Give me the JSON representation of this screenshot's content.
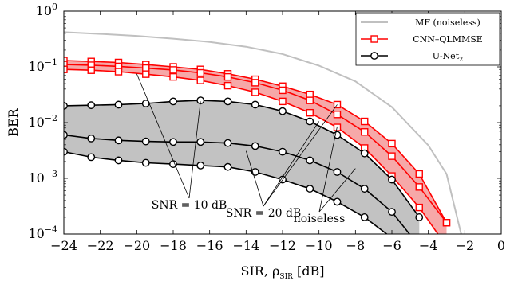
{
  "chart_data": {
    "type": "line",
    "xlabel": "SIR, ρ",
    "xlabel_sub": "SIR",
    "xlabel_unit": " [dB]",
    "ylabel": "BER",
    "xlim": [
      -24,
      0
    ],
    "ylim": [
      0.0001,
      1
    ],
    "yscale": "log",
    "x_ticks": [
      -24,
      -22,
      -20,
      -18,
      -16,
      -14,
      -12,
      -10,
      -8,
      -6,
      -4,
      -2,
      0
    ],
    "x_tick_labels": [
      "−24",
      "−22",
      "−20",
      "−18",
      "−16",
      "−14",
      "−12",
      "−10",
      "−8",
      "−6",
      "−4",
      "−2",
      "0"
    ],
    "y_ticks": [
      {
        "value": 1,
        "base": "10",
        "exp": "0"
      },
      {
        "value": 0.1,
        "base": "10",
        "exp": "−1"
      },
      {
        "value": 0.01,
        "base": "10",
        "exp": "−2"
      },
      {
        "value": 0.001,
        "base": "10",
        "exp": "−3"
      },
      {
        "value": 0.0001,
        "base": "10",
        "exp": "−4"
      }
    ],
    "legend": {
      "placement": "top-right",
      "entries": [
        {
          "name": "MF (noiseless)",
          "color": "#c0c0c0",
          "marker": "none"
        },
        {
          "name": "CNN–QLMMSE",
          "color": "#ff0000",
          "marker": "square"
        },
        {
          "name": "U-Net",
          "sub": "2",
          "color": "#000000",
          "marker": "circle"
        }
      ]
    },
    "series": [
      {
        "name": "MF (noiseless)",
        "color": "#c0c0c0",
        "marker": "none",
        "x": [
          -24,
          -22,
          -20,
          -18,
          -16,
          -14,
          -12,
          -10,
          -8,
          -6,
          -4,
          -3,
          -2.2
        ],
        "y": [
          0.42,
          0.39,
          0.36,
          0.32,
          0.28,
          0.23,
          0.17,
          0.105,
          0.055,
          0.019,
          0.0039,
          0.0012,
          0.0001
        ]
      },
      {
        "name": "CNN–QLMMSE",
        "group": "SNR = 20 dB",
        "color": "#ff0000",
        "marker": "square",
        "x": [
          -24,
          -22.5,
          -21,
          -19.5,
          -18,
          -16.5,
          -15,
          -13.5,
          -12,
          -10.5,
          -9,
          -7.5,
          -6,
          -4.5,
          -3
        ],
        "y": [
          0.13,
          0.125,
          0.12,
          0.11,
          0.1,
          0.09,
          0.075,
          0.06,
          0.045,
          0.032,
          0.021,
          0.0105,
          0.0042,
          0.0012,
          0.00016
        ]
      },
      {
        "name": "CNN–QLMMSE",
        "group": "SNR = 10 dB",
        "color": "#ff0000",
        "marker": "square",
        "x": [
          -24,
          -22.5,
          -21,
          -19.5,
          -18,
          -16.5,
          -15,
          -13.5,
          -12,
          -10.5,
          -9,
          -7.5,
          -6,
          -4.5,
          -3
        ],
        "y": [
          0.11,
          0.107,
          0.102,
          0.095,
          0.088,
          0.078,
          0.066,
          0.052,
          0.038,
          0.025,
          0.014,
          0.0068,
          0.0025,
          0.0007,
          0.00016
        ]
      },
      {
        "name": "CNN–QLMMSE",
        "group": "noiseless",
        "color": "#ff0000",
        "marker": "square",
        "x": [
          -24,
          -22.5,
          -21,
          -19.5,
          -18,
          -16.5,
          -15,
          -13.5,
          -12,
          -10.5,
          -9,
          -7.5,
          -6,
          -4.5,
          -3
        ],
        "y": [
          0.09,
          0.087,
          0.082,
          0.074,
          0.066,
          0.057,
          0.046,
          0.035,
          0.024,
          0.015,
          0.0082,
          0.0035,
          0.0011,
          0.0003,
          6e-05
        ]
      },
      {
        "name": "U-Net2",
        "group": "SNR = 10 dB",
        "color": "#000000",
        "marker": "circle",
        "x": [
          -24,
          -22.5,
          -21,
          -19.5,
          -18,
          -16.5,
          -15,
          -13.5,
          -12,
          -10.5,
          -9,
          -7.5,
          -6,
          -4.5
        ],
        "y": [
          0.02,
          0.0205,
          0.021,
          0.022,
          0.024,
          0.025,
          0.024,
          0.021,
          0.016,
          0.0105,
          0.006,
          0.0028,
          0.00095,
          0.0002
        ]
      },
      {
        "name": "U-Net2",
        "group": "SNR = 20 dB",
        "color": "#000000",
        "marker": "circle",
        "x": [
          -24,
          -22.5,
          -21,
          -19.5,
          -18,
          -16.5,
          -15,
          -13.5,
          -12,
          -10.5,
          -9,
          -7.5,
          -6,
          -4.5
        ],
        "y": [
          0.006,
          0.0052,
          0.0048,
          0.0046,
          0.0045,
          0.0045,
          0.0043,
          0.0038,
          0.003,
          0.0021,
          0.0013,
          0.00065,
          0.00025,
          6e-05
        ]
      },
      {
        "name": "U-Net2",
        "group": "noiseless",
        "color": "#000000",
        "marker": "circle",
        "x": [
          -24,
          -22.5,
          -21,
          -19.5,
          -18,
          -16.5,
          -15,
          -13.5,
          -12,
          -10.5,
          -9,
          -7.5,
          -6,
          -4.5
        ],
        "y": [
          0.003,
          0.0024,
          0.0021,
          0.0019,
          0.0018,
          0.0017,
          0.0016,
          0.0013,
          0.00095,
          0.00065,
          0.00038,
          0.0002,
          8.5e-05,
          3e-05
        ]
      }
    ],
    "annotations": [
      {
        "text": "SNR = 10 dB",
        "targets": [
          [
            -20,
            0.075
          ],
          [
            -16.5,
            0.024
          ]
        ]
      },
      {
        "text": "SNR = 20 dB",
        "targets": [
          [
            -14,
            0.0031
          ],
          [
            -10,
            0.0105
          ],
          [
            -9,
            0.021
          ]
        ]
      },
      {
        "text": "noiseless",
        "targets": [
          [
            -8,
            0.0015
          ],
          [
            -9,
            0.0085
          ]
        ]
      }
    ]
  }
}
